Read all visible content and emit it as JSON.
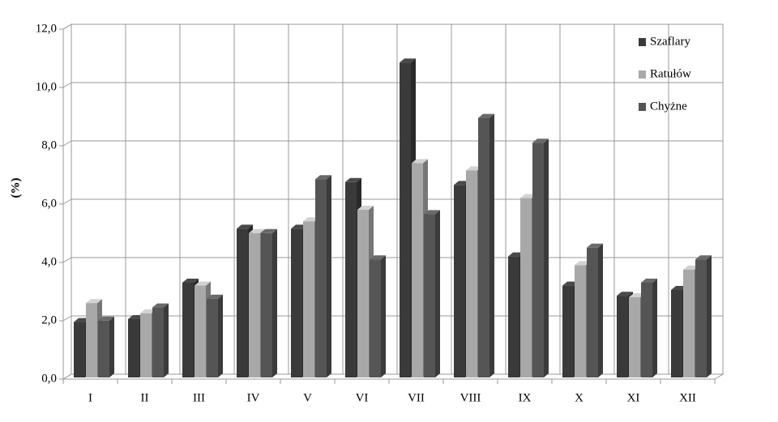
{
  "chart_data": {
    "type": "bar3d",
    "y_label": "(%)",
    "categories": [
      "I",
      "II",
      "III",
      "IV",
      "V",
      "VI",
      "VII",
      "VIII",
      "IX",
      "X",
      "XI",
      "XII"
    ],
    "series": [
      {
        "name": "Szaflary",
        "color": "#3a3a3a",
        "values": [
          1.9,
          2.0,
          3.25,
          5.1,
          5.1,
          6.7,
          10.8,
          6.6,
          4.15,
          3.15,
          2.8,
          3.0
        ]
      },
      {
        "name": "Ratułów",
        "color": "#a8a8a8",
        "values": [
          2.55,
          2.2,
          3.15,
          4.95,
          5.35,
          5.75,
          7.35,
          7.1,
          6.15,
          3.85,
          2.75,
          3.7
        ]
      },
      {
        "name": "Chyżne",
        "color": "#555555",
        "values": [
          1.95,
          2.4,
          2.7,
          4.95,
          6.8,
          4.05,
          5.6,
          8.9,
          8.05,
          4.45,
          3.25,
          4.05
        ]
      }
    ],
    "ylim": [
      0,
      12
    ],
    "yticks": [
      {
        "value": 0,
        "label": "0,0"
      },
      {
        "value": 2,
        "label": "2,0"
      },
      {
        "value": 4,
        "label": "4,0"
      },
      {
        "value": 6,
        "label": "6,0"
      },
      {
        "value": 8,
        "label": "8,0"
      },
      {
        "value": 10,
        "label": "10,0"
      },
      {
        "value": 12,
        "label": "12,0"
      }
    ],
    "grid": true,
    "legend": "top-right"
  }
}
